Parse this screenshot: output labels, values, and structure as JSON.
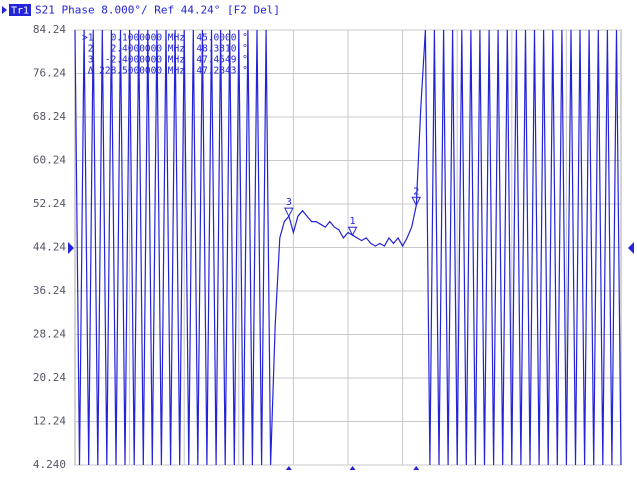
{
  "chart_data": {
    "type": "line",
    "badge": "Tr1",
    "title": "S21 Phase 8.000°/ Ref 44.24° [F2 Del]",
    "marker_table": [
      ">1   0.1000000 MHz  45.0000 °",
      " 2   2.4000000 MHz  48.3310 °",
      " 3  -2.4000000 MHz  47.4549 °",
      " Δ 228.5000000 MHz  47.2843 °"
    ],
    "markers": [
      "1",
      "2",
      "3"
    ],
    "color": "#2323d8",
    "ylim": [
      4.24,
      84.24
    ],
    "yticks": [
      84.24,
      76.24,
      68.24,
      60.24,
      52.24,
      44.24,
      36.24,
      28.24,
      20.24,
      12.24,
      {
        "value": 4.24,
        "label": "4.240"
      }
    ],
    "grid": true,
    "values": [
      84.24,
      4.24,
      84.24,
      4.24,
      84.24,
      4.24,
      84.24,
      4.24,
      84.24,
      4.24,
      84.24,
      4.24,
      84.24,
      4.24,
      84.24,
      4.24,
      84.24,
      4.24,
      84.24,
      4.24,
      84.24,
      4.24,
      84.24,
      4.24,
      84.24,
      4.24,
      84.24,
      4.24,
      84.24,
      4.24,
      84.24,
      4.24,
      84.24,
      4.24,
      84.24,
      4.24,
      84.24,
      4.24,
      84.24,
      4.24,
      84.24,
      4.24,
      84.24,
      4.24,
      30,
      46,
      49,
      50,
      47,
      50,
      51,
      50,
      49,
      49,
      48.5,
      48,
      49,
      48,
      47.5,
      46,
      47,
      46.5,
      46,
      45.5,
      46,
      45,
      44.5,
      45,
      44.5,
      46,
      45,
      46,
      44.5,
      46,
      48,
      52,
      70,
      84.24,
      4.24,
      84.24,
      4.24,
      84.24,
      4.24,
      84.24,
      4.24,
      84.24,
      4.24,
      84.24,
      4.24,
      84.24,
      4.24,
      84.24,
      4.24,
      84.24,
      4.24,
      84.24,
      4.24,
      84.24,
      4.24,
      84.24,
      4.24,
      84.24,
      4.24,
      84.24,
      4.24,
      84.24,
      4.24,
      84.24,
      4.24,
      84.24,
      4.24,
      84.24,
      4.24,
      84.24,
      4.24,
      84.24,
      4.24,
      84.24,
      4.24,
      84.24,
      4.24
    ]
  }
}
